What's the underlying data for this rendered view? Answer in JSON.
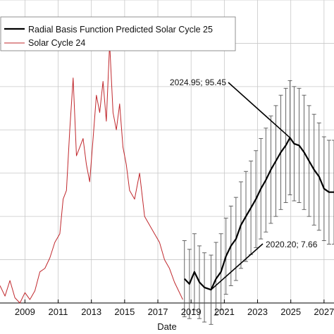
{
  "chart_data": {
    "type": "line",
    "xlabel": "Date",
    "ylabel": "",
    "xlim": [
      2007.5,
      2027.6
    ],
    "ylim": [
      0,
      175
    ],
    "grid": true,
    "legend_position": "top-left",
    "x_ticks": [
      2009,
      2011,
      2013,
      2015,
      2017,
      2019,
      2021,
      2023,
      2025,
      2027
    ],
    "x_tick_labels": [
      "2009",
      "2011",
      "2013",
      "2015",
      "2017",
      "2019",
      "2021",
      "2023",
      "2025",
      "2027"
    ],
    "colors": {
      "predicted": "#000000",
      "cycle24": "#c0282d",
      "errorbar": "#555555",
      "grid": "#c8c8c8"
    },
    "series": [
      {
        "name": "Radial Basis Function Predicted Solar Cycle 25",
        "color": "#000000",
        "has_error_bars": true,
        "x": [
          2018.6,
          2018.9,
          2019.2,
          2019.5,
          2019.8,
          2020.2,
          2020.5,
          2020.8,
          2021.1,
          2021.4,
          2021.7,
          2022.0,
          2022.3,
          2022.6,
          2022.9,
          2023.2,
          2023.5,
          2023.8,
          2024.1,
          2024.4,
          2024.7,
          2024.95,
          2025.2,
          2025.5,
          2025.8,
          2026.1,
          2026.4,
          2026.7,
          2027.0,
          2027.3,
          2027.6
        ],
        "y": [
          14,
          11,
          18,
          12,
          9,
          7.66,
          14,
          18,
          27,
          33,
          37,
          45,
          50,
          55,
          60,
          66,
          71,
          77,
          82,
          87,
          91,
          95.45,
          92,
          91,
          87,
          82,
          77,
          73,
          66,
          64,
          64
        ],
        "error": [
          22,
          20,
          22,
          21,
          20,
          20,
          21,
          22,
          22,
          23,
          24,
          25,
          26,
          27,
          28,
          29,
          30,
          31,
          32,
          33,
          33,
          33,
          33,
          33,
          33,
          32,
          32,
          31,
          30,
          30,
          30
        ]
      },
      {
        "name": "Solar Cycle 24",
        "color": "#c0282d",
        "x": [
          2007.5,
          2007.8,
          2008.1,
          2008.4,
          2008.7,
          2009.0,
          2009.3,
          2009.6,
          2009.9,
          2010.2,
          2010.5,
          2010.8,
          2011.1,
          2011.3,
          2011.5,
          2011.7,
          2011.9,
          2012.1,
          2012.3,
          2012.5,
          2012.7,
          2012.9,
          2013.1,
          2013.3,
          2013.5,
          2013.7,
          2013.9,
          2014.1,
          2014.3,
          2014.5,
          2014.7,
          2014.9,
          2015.1,
          2015.3,
          2015.6,
          2015.9,
          2016.2,
          2016.5,
          2016.8,
          2017.1,
          2017.4,
          2017.7,
          2018.0,
          2018.3,
          2018.5
        ],
        "y": [
          10,
          4,
          13,
          3,
          0,
          6,
          2,
          7,
          18,
          20,
          26,
          35,
          40,
          60,
          65,
          100,
          130,
          85,
          90,
          95,
          80,
          70,
          95,
          120,
          110,
          128,
          105,
          150,
          110,
          100,
          115,
          90,
          80,
          65,
          60,
          75,
          50,
          45,
          40,
          35,
          25,
          20,
          12,
          6,
          2
        ]
      }
    ],
    "annotations": [
      {
        "text": "2024.95; 95.45",
        "x": 2024.95,
        "y": 95.45
      },
      {
        "text": "2020.20; 7.66",
        "x": 2020.2,
        "y": 7.66
      }
    ]
  }
}
